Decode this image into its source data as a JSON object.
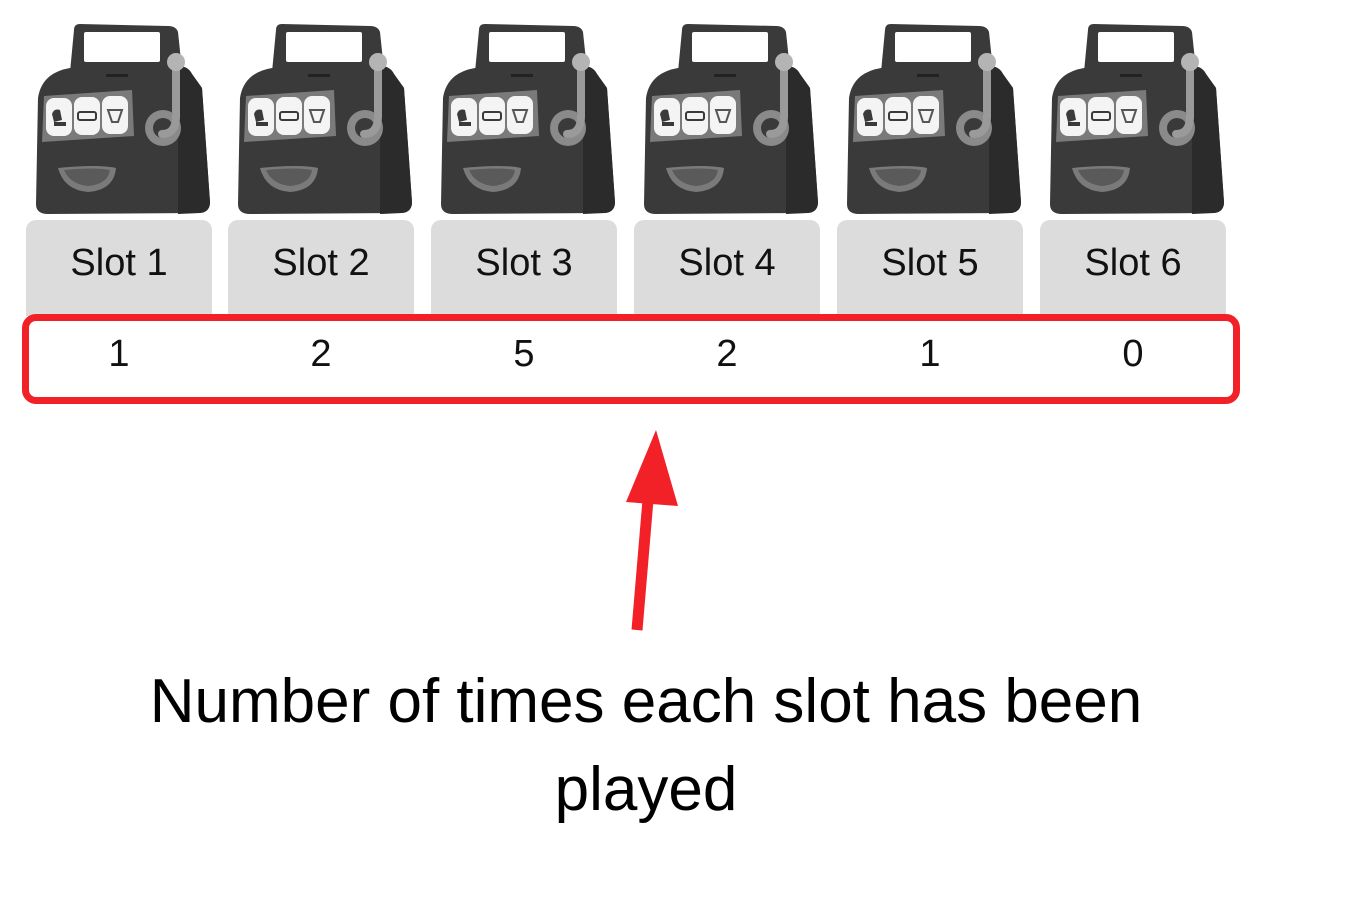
{
  "slots": [
    {
      "label": "Slot 1",
      "plays": "1"
    },
    {
      "label": "Slot 2",
      "plays": "2"
    },
    {
      "label": "Slot 3",
      "plays": "5"
    },
    {
      "label": "Slot 4",
      "plays": "2"
    },
    {
      "label": "Slot 5",
      "plays": "1"
    },
    {
      "label": "Slot 6",
      "plays": "0"
    }
  ],
  "annotation": {
    "caption": "Number of times each slot has been played",
    "color": "#f22128"
  },
  "icons": {
    "machine": "slot-machine-icon",
    "arrow": "arrow-up-icon"
  },
  "colors": {
    "button_bg": "#dcdcdc",
    "machine_body": "#3a3a3a",
    "text": "#111111"
  }
}
